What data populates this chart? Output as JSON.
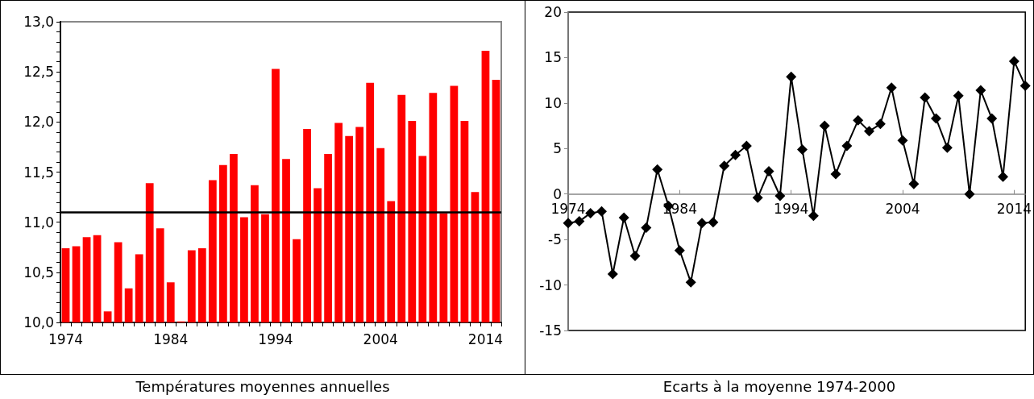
{
  "chart_data": [
    {
      "type": "bar",
      "title": "Températures moyennes annuelles",
      "categories": [
        "1974",
        null,
        null,
        null,
        null,
        null,
        null,
        null,
        null,
        null,
        "1984",
        null,
        null,
        null,
        null,
        null,
        null,
        null,
        null,
        null,
        "1994",
        null,
        null,
        null,
        null,
        null,
        null,
        null,
        null,
        null,
        "2004",
        null,
        null,
        null,
        null,
        null,
        null,
        null,
        null,
        null,
        "2014",
        null
      ],
      "values": [
        10.74,
        10.76,
        10.85,
        10.87,
        10.11,
        10.8,
        10.34,
        10.68,
        11.39,
        10.94,
        10.4,
        10.01,
        10.72,
        10.74,
        11.42,
        11.57,
        11.68,
        11.05,
        11.37,
        11.08,
        12.53,
        11.63,
        10.83,
        11.93,
        11.34,
        11.68,
        11.99,
        11.86,
        11.95,
        12.39,
        11.74,
        11.21,
        12.27,
        12.01,
        11.66,
        12.29,
        11.09,
        12.36,
        12.01,
        11.3,
        12.71,
        12.42
      ],
      "color": "#ff0000",
      "ylim": [
        10,
        13
      ],
      "yticks": [
        {
          "value": 10,
          "label": "10,0"
        },
        {
          "value": 10.5,
          "label": "10,5"
        },
        {
          "value": 11,
          "label": "11,0"
        },
        {
          "value": 11.5,
          "label": "11,5"
        },
        {
          "value": 12,
          "label": "12,0"
        },
        {
          "value": 12.5,
          "label": "12,5"
        },
        {
          "value": 13,
          "label": "13,0"
        }
      ],
      "ref_lines": [
        {
          "axis": "y",
          "value": 11.1,
          "color": "#000000"
        }
      ],
      "grid": false
    },
    {
      "type": "line",
      "title": "Ecarts à la moyenne 1974-2000",
      "categories": [
        "1974",
        null,
        null,
        null,
        null,
        null,
        null,
        null,
        null,
        null,
        "1984",
        null,
        null,
        null,
        null,
        null,
        null,
        null,
        null,
        null,
        "1994",
        null,
        null,
        null,
        null,
        null,
        null,
        null,
        null,
        null,
        "2004",
        null,
        null,
        null,
        null,
        null,
        null,
        null,
        null,
        null,
        "2014",
        null
      ],
      "values": [
        -3.2,
        -3.0,
        -2.1,
        -1.9,
        -8.8,
        -2.6,
        -6.8,
        -3.7,
        2.7,
        -1.3,
        -6.2,
        -9.7,
        -3.2,
        -3.1,
        3.1,
        4.3,
        5.3,
        -0.4,
        2.5,
        -0.2,
        12.9,
        4.9,
        -2.4,
        7.5,
        2.2,
        5.3,
        8.1,
        6.9,
        7.7,
        11.7,
        5.9,
        1.1,
        10.6,
        8.3,
        5.1,
        10.8,
        0.0,
        11.4,
        8.3,
        1.9,
        14.6,
        11.9
      ],
      "color": "#000000",
      "marker": "diamond",
      "line_style": "solid",
      "ylim": [
        -15,
        20
      ],
      "yticks": [
        -15,
        -10,
        -5,
        0,
        5,
        10,
        15,
        20
      ],
      "grid": false
    }
  ]
}
